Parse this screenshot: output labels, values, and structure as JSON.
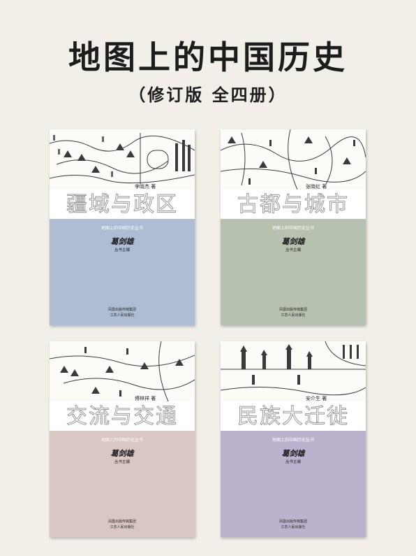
{
  "header": {
    "title": "地图上的中国历史",
    "subtitle": "（修订版 全四册）"
  },
  "books": [
    {
      "title": "疆域与政区",
      "author": "李晓杰 著",
      "series": "地图上的中国历史丛书",
      "seal": "葛剑雄",
      "editor": "丛书主编",
      "publisher_group": "凤凰出版传媒集团",
      "publisher": "江苏人民出版社",
      "color": "#aebdd3"
    },
    {
      "title": "古都与城市",
      "author": "张晓虹 著",
      "series": "地图上的中国历史丛书",
      "seal": "葛剑雄",
      "editor": "丛书主编",
      "publisher_group": "凤凰出版传媒集团",
      "publisher": "江苏人民出版社",
      "color": "#b6c1b0"
    },
    {
      "title": "交流与交通",
      "author": "傅林祥 著",
      "series": "地图上的中国历史丛书",
      "seal": "葛剑雄",
      "editor": "丛书主编",
      "publisher_group": "凤凰出版传媒集团",
      "publisher": "江苏人民出版社",
      "color": "#d8c7c3"
    },
    {
      "title": "民族大迁徙",
      "author": "安介生 著",
      "series": "地图上的中国历史丛书",
      "seal": "葛剑雄",
      "editor": "丛书主编",
      "publisher_group": "凤凰出版传媒集团",
      "publisher": "江苏人民出版社",
      "color": "#bdb2cd"
    }
  ]
}
